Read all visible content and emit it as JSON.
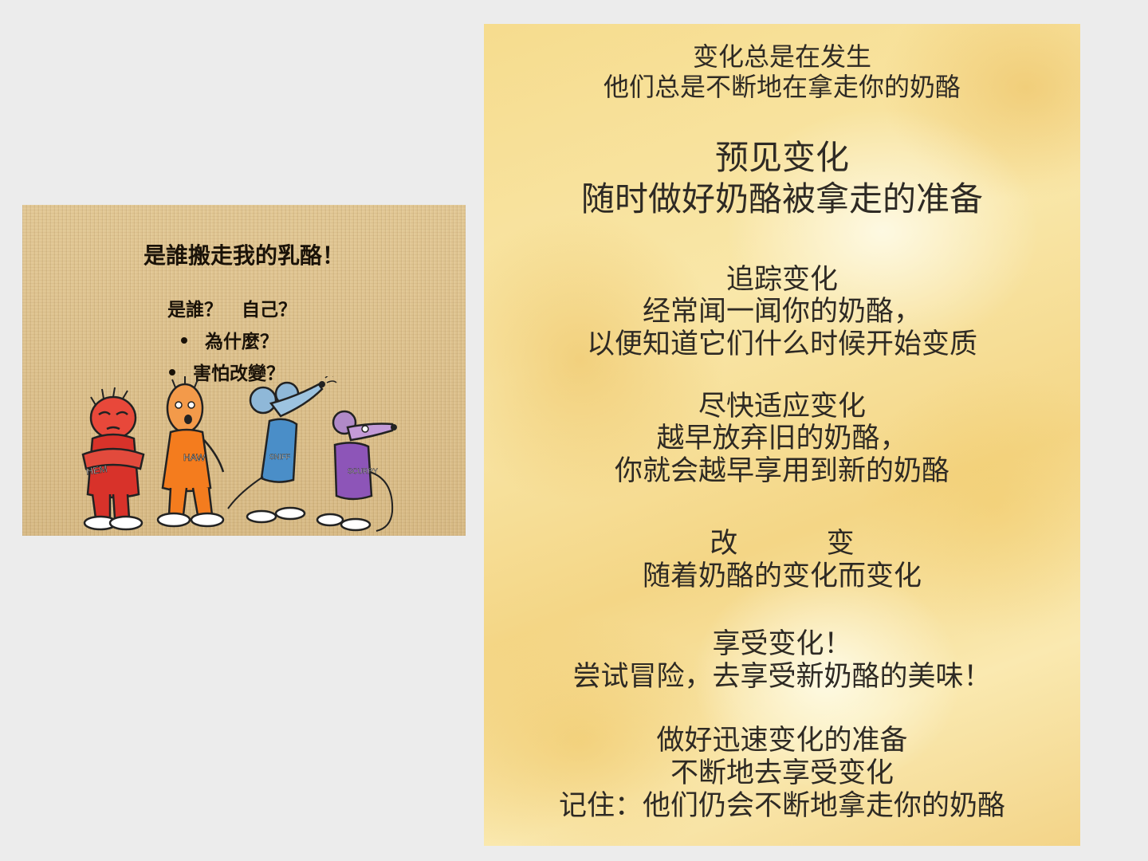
{
  "left_slide": {
    "title": "是誰搬走我的乳酪！",
    "who_line": "是誰？   自己？",
    "bullets": [
      "為什麼？",
      "害怕改變？"
    ],
    "character_labels": [
      "HEM",
      "HAW",
      "SNIFF",
      "SCURRY"
    ]
  },
  "right_slide": {
    "lines": [
      "变化总是在发生",
      "他们总是不断地在拿走你的奶酪",
      "预见变化",
      "随时做好奶酪被拿走的准备",
      "追踪变化",
      "经常闻一闻你的奶酪，",
      "以便知道它们什么时候开始变质",
      "尽快适应变化",
      "越早放弃旧的奶酪，",
      "你就会越早享用到新的奶酪",
      "改          变",
      "随着奶酪的变化而变化",
      "享受变化！",
      "尝试冒险，去享受新奶酪的美味！",
      "做好迅速变化的准备",
      "不断地去享受变化",
      "记住：他们仍会不断地拿走你的奶酪"
    ]
  }
}
